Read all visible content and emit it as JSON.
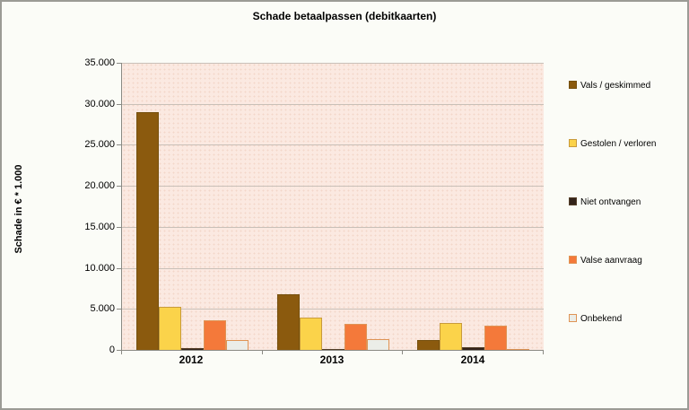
{
  "title": "Schade betaalpassen (debitkaarten)",
  "y_axis": {
    "label": "Schade in € * 1.000",
    "tick_labels": [
      "35.000",
      "30.000",
      "25.000",
      "20.000",
      "15.000",
      "10.000",
      "5.000",
      "0"
    ]
  },
  "x_axis": {
    "categories": [
      "2012",
      "2013",
      "2014"
    ]
  },
  "legend": {
    "position": "right",
    "items": [
      "Vals / geskimmed",
      "Gestolen / verloren",
      "Niet ontvangen",
      "Valse aanvraag",
      "Onbekend"
    ]
  },
  "colors": {
    "window_bg": "#fbfcf7",
    "window_border": "#9b9b95",
    "plot_bg": "#fbe9e1",
    "grid": "#c9c0b8",
    "axis": "#8a8a84",
    "text": "#000000"
  },
  "chart_data": {
    "type": "bar",
    "title": "Schade betaalpassen (debitkaarten)",
    "xlabel": "",
    "ylabel": "Schade in € * 1.000",
    "ylim": [
      0,
      35000
    ],
    "ytick_step": 5000,
    "grid": true,
    "legend_position": "right",
    "categories": [
      "2012",
      "2013",
      "2014"
    ],
    "series": [
      {
        "name": "Vals / geskimmed",
        "values": [
          29000,
          6800,
          1200
        ],
        "fill": "#8b5a0e",
        "border": "#75500e"
      },
      {
        "name": "Gestolen / verloren",
        "values": [
          5300,
          3900,
          3300
        ],
        "fill": "#fbd34a",
        "border": "#c89a3c"
      },
      {
        "name": "Niet ontvangen",
        "values": [
          200,
          100,
          300
        ],
        "fill": "#33231a",
        "border": "#55402a"
      },
      {
        "name": "Valse aanvraag",
        "values": [
          3600,
          3200,
          2900
        ],
        "fill": "#f4793a",
        "border": "#df9455"
      },
      {
        "name": "Onbekend",
        "values": [
          1200,
          1300,
          150
        ],
        "fill": "#ebede8",
        "border": "#df9455"
      }
    ]
  }
}
